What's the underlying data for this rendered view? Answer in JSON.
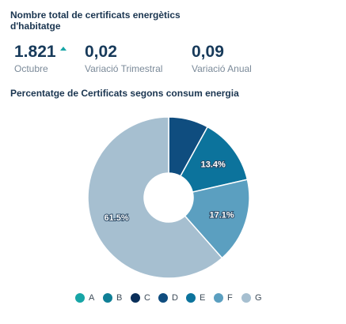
{
  "header": {
    "title": "Nombre total de certificats energètics d'habitatge"
  },
  "kpis": [
    {
      "value": "1.821",
      "label": "Octubre",
      "trend": "up"
    },
    {
      "value": "0,02",
      "label": "Variació Trimestral"
    },
    {
      "value": "0,09",
      "label": "Variació Anual"
    }
  ],
  "chart_data": {
    "type": "pie",
    "variant": "donut",
    "title": "Percentatge de Certificats segons consum energia",
    "categories": [
      "A",
      "B",
      "C",
      "D",
      "E",
      "F",
      "G"
    ],
    "values": [
      0.0,
      0.0,
      0.0,
      8.0,
      13.4,
      17.1,
      61.5
    ],
    "data_labels": [
      "",
      "",
      "",
      "",
      "13.4%",
      "17.1%",
      "61.5%"
    ],
    "colors": [
      "#17a5a6",
      "#0f7f96",
      "#0a2f5a",
      "#0f4d7f",
      "#0c739c",
      "#5b9fc0",
      "#a6bfd0"
    ],
    "legend_position": "bottom"
  }
}
